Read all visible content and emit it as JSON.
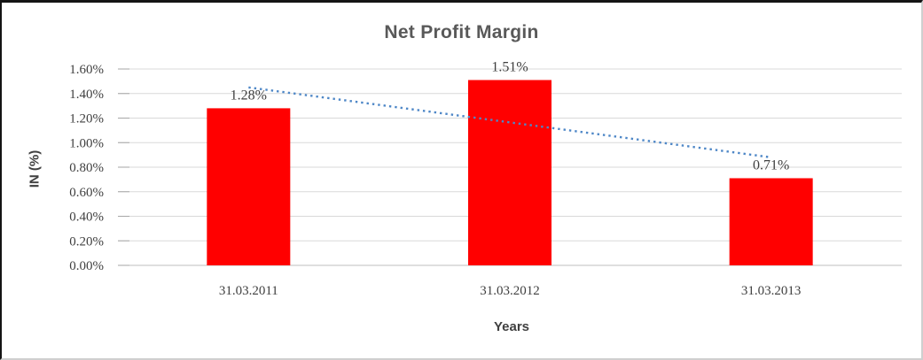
{
  "chart_data": {
    "type": "bar",
    "title": "Net Profit Margin",
    "xlabel": "Years",
    "ylabel": "IN (%)",
    "categories": [
      "31.03.2011",
      "31.03.2012",
      "31.03.2013"
    ],
    "values": [
      1.28,
      1.51,
      0.71
    ],
    "data_labels": [
      "1.28%",
      "1.51%",
      "0.71%"
    ],
    "y_ticks": [
      "1.60%",
      "1.40%",
      "1.20%",
      "1.00%",
      "0.80%",
      "0.60%",
      "0.40%",
      "0.20%",
      "0.00%"
    ],
    "ylim": [
      0,
      1.6
    ],
    "y_tick_step": 0.2,
    "grid": true,
    "legend": "none",
    "trendline": {
      "type": "linear",
      "style": "dotted",
      "start_value": 1.45,
      "end_value": 0.88
    },
    "colors": {
      "bar": "#FF0000",
      "trendline": "#4E87C7",
      "gridline": "#D9D9D9",
      "axis_line": "#BFBFBF",
      "tick_mark": "#A6A6A6",
      "title_text": "#595959",
      "label_text": "#3F3F3F"
    }
  }
}
